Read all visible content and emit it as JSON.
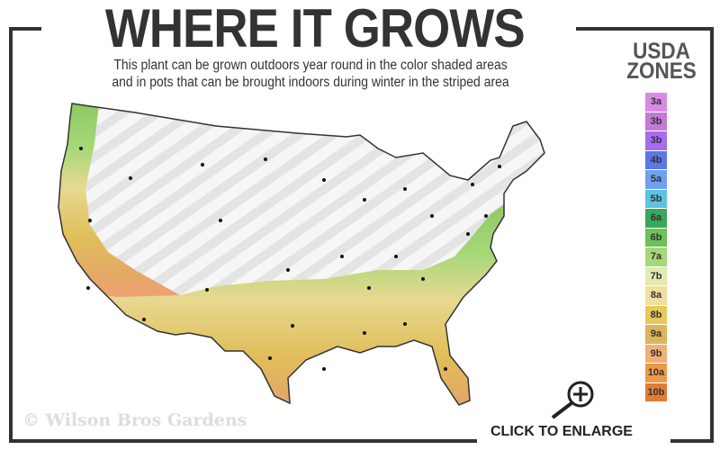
{
  "title": "WHERE IT GROWS",
  "subtitle": [
    "This plant can be grown outdoors year round in the color shaded areas",
    "and in pots that can be brought indoors during winter in the striped area"
  ],
  "legend": {
    "title": [
      "USDA",
      "ZONES"
    ],
    "zones": [
      {
        "label": "3a",
        "color": "#d98ae6"
      },
      {
        "label": "3b",
        "color": "#c27ad6"
      },
      {
        "label": "3b",
        "color": "#a66cf0"
      },
      {
        "label": "4b",
        "color": "#5b78e6"
      },
      {
        "label": "5a",
        "color": "#6fa0f0"
      },
      {
        "label": "5b",
        "color": "#5cc4e0"
      },
      {
        "label": "6a",
        "color": "#3aa65a"
      },
      {
        "label": "6b",
        "color": "#6cc05a"
      },
      {
        "label": "7a",
        "color": "#a6d878"
      },
      {
        "label": "7b",
        "color": "#e2eab0"
      },
      {
        "label": "8a",
        "color": "#f0e0a0"
      },
      {
        "label": "8b",
        "color": "#e8c858"
      },
      {
        "label": "9a",
        "color": "#dcb45a"
      },
      {
        "label": "9b",
        "color": "#f0b07a"
      },
      {
        "label": "10a",
        "color": "#ec9a48"
      },
      {
        "label": "10b",
        "color": "#e27c34"
      }
    ]
  },
  "map": {
    "growing_zones": [
      "7a",
      "7b",
      "8a",
      "8b",
      "9a",
      "9b",
      "10a",
      "10b"
    ],
    "stripe_color": "#e6e6e6",
    "outline_color": "#333333"
  },
  "watermark": "© Wilson Bros Gardens",
  "enlarge_label": "CLICK TO ENLARGE"
}
